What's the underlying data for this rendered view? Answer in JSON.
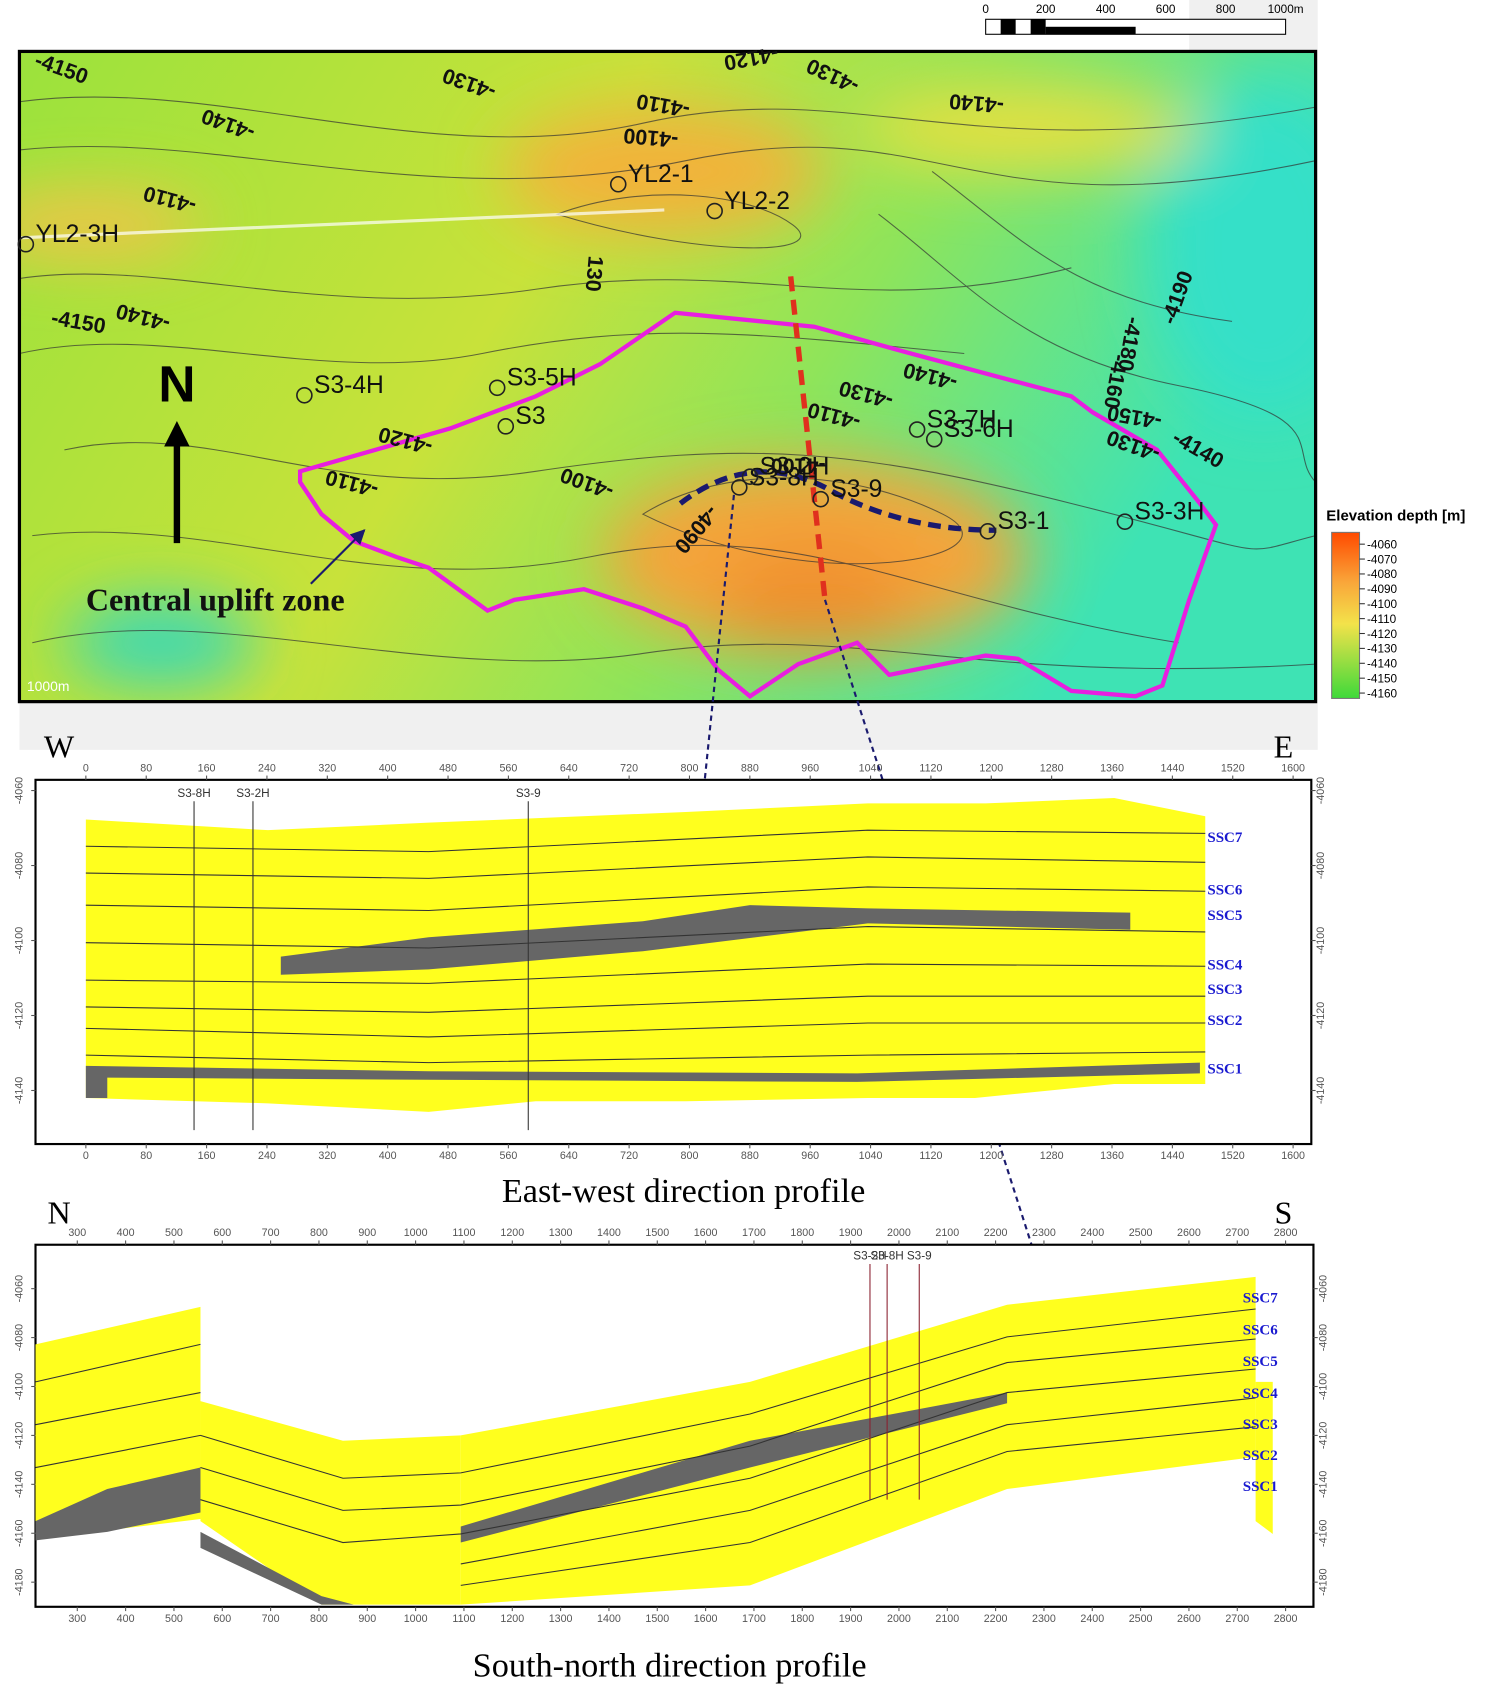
{
  "scale_bar": {
    "labels": [
      "0",
      "200",
      "400",
      "600",
      "800",
      "1000m"
    ]
  },
  "map": {
    "north": "N",
    "zone_label": "Central uplift zone",
    "scale_note": "1000m",
    "wells": [
      "YL2-1",
      "YL2-2",
      "YL2-3H",
      "S3-4H",
      "S3-5H",
      "S3",
      "S3-7H",
      "S3-6H",
      "S3-9",
      "S3-8H",
      "S3-2H",
      "S3-1",
      "S3-3H"
    ],
    "contour_labels": [
      "-4150",
      "-4140",
      "-4130",
      "-4120",
      "-4110",
      "-4100",
      "-4130",
      "-4140",
      "-4110",
      "-4150",
      "-4140",
      "130",
      "-4190",
      "-4180",
      "-4160",
      "-4150",
      "-4140",
      "-4130",
      "-4140",
      "-4130",
      "-4120",
      "-4110",
      "-4100",
      "-4090",
      "-4100",
      "-4110"
    ],
    "legend": {
      "title": "Elevation depth [m]",
      "ticks": [
        -4060,
        -4070,
        -4080,
        -4090,
        -4100,
        -4110,
        -4120,
        -4130,
        -4140,
        -4150,
        -4160
      ]
    }
  },
  "profiles": [
    {
      "left": "W",
      "right": "E",
      "title": "East-west direction profile",
      "xticks": [
        0,
        80,
        160,
        240,
        320,
        400,
        480,
        560,
        640,
        720,
        800,
        880,
        960,
        1040,
        1120,
        1200,
        1280,
        1360,
        1440,
        1520,
        1600
      ],
      "yticks": [
        -4060,
        -4080,
        -4100,
        -4120,
        -4140
      ],
      "wells": [
        "S3-8H",
        "S3-2H",
        "S3-9"
      ],
      "layers": [
        "SSC7",
        "SSC6",
        "SSC5",
        "SSC4",
        "SSC3",
        "SSC2",
        "SSC1"
      ]
    },
    {
      "left": "N",
      "right": "S",
      "title": "South-north direction profile",
      "xticks": [
        300,
        400,
        500,
        600,
        700,
        800,
        900,
        1000,
        1100,
        1200,
        1300,
        1400,
        1500,
        1600,
        1700,
        1800,
        1900,
        2000,
        2100,
        2200,
        2300,
        2400,
        2500,
        2600,
        2700,
        2800
      ],
      "yticks": [
        -4060,
        -4080,
        -4100,
        -4120,
        -4140,
        -4160,
        -4180
      ],
      "wells": [
        "S3-2H",
        "S3-8H",
        "S3-9"
      ],
      "layers": [
        "SSC7",
        "SSC6",
        "SSC5",
        "SSC4",
        "SSC3",
        "SSC2",
        "SSC1"
      ]
    }
  ]
}
